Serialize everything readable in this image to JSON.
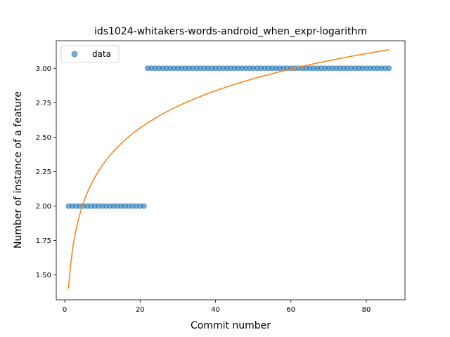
{
  "chart_data": {
    "type": "scatter",
    "title": "ids1024-whitakers-words-android_when_expr-logarithm",
    "xlabel": "Commit number",
    "ylabel": "Number of instance of a feature",
    "xlim": [
      -2.25,
      90.25
    ],
    "ylim": [
      1.32,
      3.2
    ],
    "xticks": [
      0,
      20,
      40,
      60,
      80
    ],
    "yticks": [
      1.5,
      1.75,
      2.0,
      2.25,
      2.5,
      2.75,
      3.0
    ],
    "ytick_labels": [
      "1.50",
      "1.75",
      "2.00",
      "2.25",
      "2.50",
      "2.75",
      "3.00"
    ],
    "grid": false,
    "legend": {
      "placement": "top-left",
      "entries": [
        "data"
      ]
    },
    "colors": {
      "data": "#1f77b4",
      "fit": "#ff7f0e"
    },
    "series": [
      {
        "name": "data",
        "kind": "scatter",
        "segments": [
          {
            "x_from": 1,
            "x_to": 21,
            "y": 2.0
          },
          {
            "x_from": 22,
            "x_to": 86,
            "y": 3.0
          }
        ]
      },
      {
        "kind": "line",
        "model": "logarithm",
        "params": {
          "a": 0.3895,
          "b": 1.4
        },
        "x_from": 1,
        "x_to": 86
      }
    ]
  }
}
